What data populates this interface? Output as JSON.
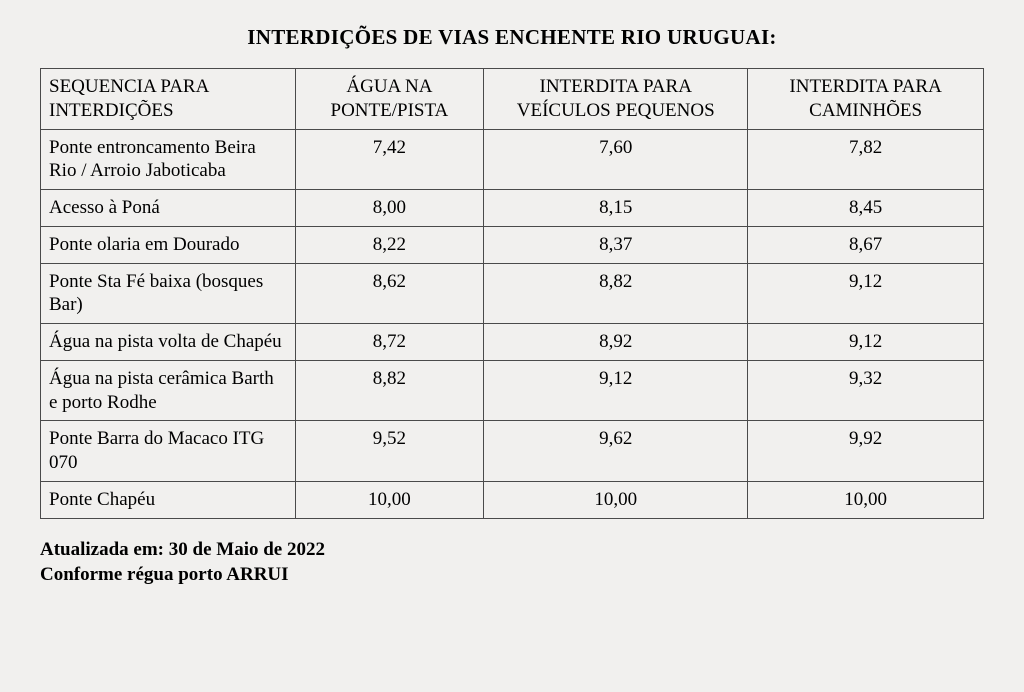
{
  "title": "INTERDIÇÕES DE VIAS ENCHENTE RIO URUGUAI:",
  "columns": {
    "seq": "SEQUENCIA PARA INTERDIÇÕES",
    "agua": "ÁGUA NA PONTE/PISTA",
    "peq": "INTERDITA PARA VEÍCULOS PEQUENOS",
    "cam": "INTERDITA PARA CAMINHÕES"
  },
  "rows": [
    {
      "loc": "Ponte entroncamento Beira Rio / Arroio Jaboticaba",
      "agua": "7,42",
      "peq": "7,60",
      "cam": "7,82"
    },
    {
      "loc": "Acesso à Poná",
      "agua": "8,00",
      "peq": "8,15",
      "cam": "8,45"
    },
    {
      "loc": "Ponte olaria em Dourado",
      "agua": "8,22",
      "peq": "8,37",
      "cam": "8,67"
    },
    {
      "loc": "Ponte Sta Fé baixa (bosques Bar)",
      "agua": "8,62",
      "peq": "8,82",
      "cam": "9,12"
    },
    {
      "loc": "Água na pista volta de Chapéu",
      "agua": "8,72",
      "peq": "8,92",
      "cam": "9,12"
    },
    {
      "loc": "Água na pista cerâmica Barth e porto Rodhe",
      "agua": "8,82",
      "peq": "9,12",
      "cam": "9,32"
    },
    {
      "loc": "Ponte Barra do Macaco ITG 070",
      "agua": "9,52",
      "peq": "9,62",
      "cam": "9,92"
    },
    {
      "loc": "Ponte Chapéu",
      "agua": "10,00",
      "peq": "10,00",
      "cam": "10,00"
    }
  ],
  "footer": {
    "updated": "Atualizada em: 30 de Maio de 2022",
    "reference": "Conforme régua porto ARRUI"
  },
  "style": {
    "background_color": "#f1f0ee",
    "text_color": "#000000",
    "border_color": "#4a4a4a",
    "font_family": "Times New Roman",
    "title_fontsize_pt": 16,
    "cell_fontsize_pt": 14,
    "footer_fontsize_pt": 14,
    "col_widths_pct": [
      27,
      20,
      28,
      25
    ],
    "cell_text_align_numeric": "center",
    "cell_text_align_loc": "left"
  }
}
